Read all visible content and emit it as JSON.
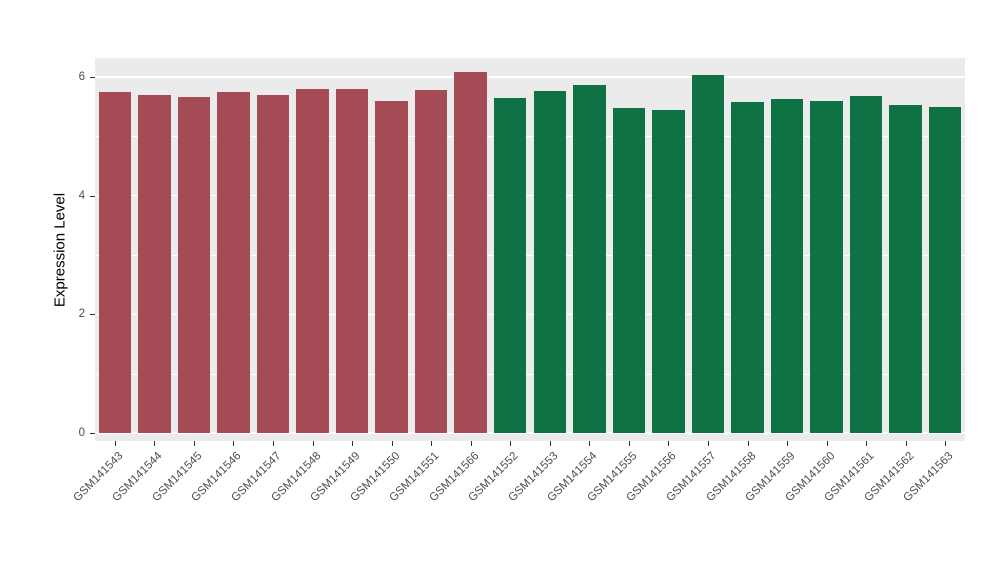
{
  "chart_data": {
    "type": "bar",
    "title": "",
    "xlabel": "",
    "ylabel": "Expression Level",
    "ylim": [
      0,
      6.33
    ],
    "yticks": [
      0,
      2,
      4,
      6
    ],
    "yticks_minor": [
      1,
      3,
      5
    ],
    "grid": "on",
    "legend": "none",
    "panel_background": "#EBEBEB",
    "grid_color": "#FFFFFF",
    "tick_label_color": "#4D4D4D",
    "categories": [
      "GSM141543",
      "GSM141544",
      "GSM141545",
      "GSM141546",
      "GSM141547",
      "GSM141548",
      "GSM141549",
      "GSM141550",
      "GSM141551",
      "GSM141566",
      "GSM141552",
      "GSM141553",
      "GSM141554",
      "GSM141555",
      "GSM141556",
      "GSM141557",
      "GSM141558",
      "GSM141559",
      "GSM141560",
      "GSM141561",
      "GSM141562",
      "GSM141563"
    ],
    "values": [
      5.75,
      5.7,
      5.67,
      5.75,
      5.7,
      5.8,
      5.8,
      5.6,
      5.78,
      6.08,
      5.65,
      5.77,
      5.87,
      5.48,
      5.45,
      6.03,
      5.58,
      5.63,
      5.6,
      5.68,
      5.53,
      5.5
    ],
    "groups": [
      "red",
      "red",
      "red",
      "red",
      "red",
      "red",
      "red",
      "red",
      "red",
      "red",
      "green",
      "green",
      "green",
      "green",
      "green",
      "green",
      "green",
      "green",
      "green",
      "green",
      "green",
      "green"
    ],
    "group_colors": {
      "red": "#A54B55",
      "green": "#0E7245"
    }
  }
}
